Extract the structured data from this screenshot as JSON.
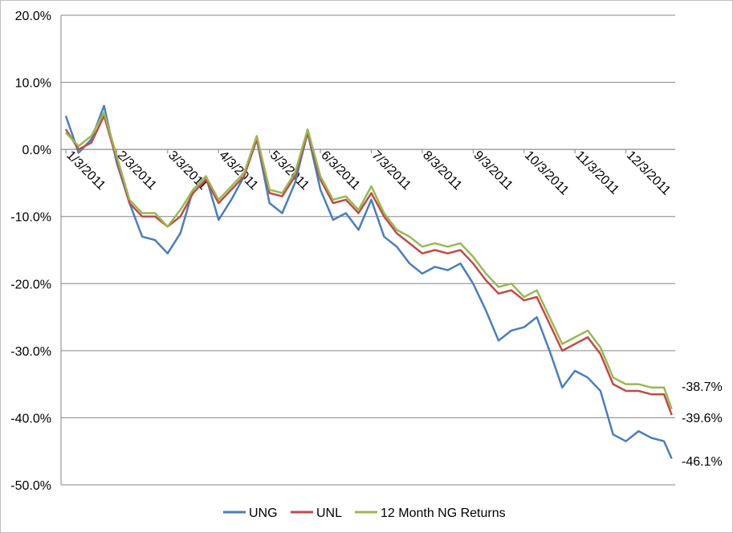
{
  "chart_data": {
    "type": "line",
    "title": "",
    "xlabel": "",
    "ylabel": "",
    "ylim": [
      -50,
      20
    ],
    "y_ticks": [
      "20.0%",
      "10.0%",
      "0.0%",
      "-10.0%",
      "-20.0%",
      "-30.0%",
      "-40.0%",
      "-50.0%"
    ],
    "x_tick_labels": [
      "1/3/2011",
      "2/3/2011",
      "3/3/2011",
      "4/3/2011",
      "5/3/2011",
      "6/3/2011",
      "7/3/2011",
      "8/3/2011",
      "9/3/2011",
      "10/3/2011",
      "11/3/2011",
      "12/3/2011"
    ],
    "grid": "horizontal",
    "legend_position": "bottom",
    "colors": {
      "UNG": "#4a7ebb",
      "UNL": "#be4b48",
      "12 Month NG Returns": "#98b954",
      "grid": "#868686"
    },
    "end_labels": [
      {
        "series": "12 Month NG Returns",
        "text": "-38.7%"
      },
      {
        "series": "UNL",
        "text": "-39.6%"
      },
      {
        "series": "UNG",
        "text": "-46.1%"
      }
    ],
    "x": [
      0,
      0.25,
      0.5,
      0.75,
      1.0,
      1.25,
      1.5,
      1.75,
      2.0,
      2.25,
      2.5,
      2.75,
      3.0,
      3.25,
      3.5,
      3.75,
      4.0,
      4.25,
      4.5,
      4.75,
      5.0,
      5.25,
      5.5,
      5.75,
      6.0,
      6.25,
      6.5,
      6.75,
      7.0,
      7.25,
      7.5,
      7.75,
      8.0,
      8.25,
      8.5,
      8.75,
      9.0,
      9.25,
      9.5,
      9.75,
      10.0,
      10.25,
      10.5,
      10.75,
      11.0,
      11.25,
      11.5,
      11.75,
      11.9
    ],
    "series": [
      {
        "name": "UNG",
        "values": [
          5.0,
          -0.5,
          1.5,
          6.5,
          -2.0,
          -8.0,
          -13.0,
          -13.5,
          -15.5,
          -12.5,
          -6.0,
          -4.0,
          -10.5,
          -7.5,
          -4.0,
          1.5,
          -8.0,
          -9.5,
          -5.0,
          2.5,
          -6.0,
          -10.5,
          -9.5,
          -12.0,
          -7.5,
          -13.0,
          -14.5,
          -17.0,
          -18.5,
          -17.5,
          -18.0,
          -17.0,
          -20.0,
          -24.0,
          -28.5,
          -27.0,
          -26.5,
          -25.0,
          -30.0,
          -35.5,
          -33.0,
          -34.0,
          -36.0,
          -42.5,
          -43.5,
          -42.0,
          -43.0,
          -43.5,
          -46.1
        ]
      },
      {
        "name": "UNL",
        "values": [
          3.0,
          0.0,
          1.0,
          5.0,
          -1.5,
          -8.0,
          -10.0,
          -10.0,
          -11.5,
          -10.0,
          -6.5,
          -4.5,
          -8.0,
          -6.0,
          -4.0,
          1.5,
          -6.5,
          -7.0,
          -4.0,
          2.5,
          -4.5,
          -8.0,
          -7.5,
          -9.5,
          -6.5,
          -10.0,
          -12.5,
          -14.0,
          -15.5,
          -15.0,
          -15.5,
          -15.0,
          -17.0,
          -19.5,
          -21.5,
          -21.0,
          -22.5,
          -22.0,
          -26.0,
          -30.0,
          -29.0,
          -28.0,
          -30.5,
          -35.0,
          -36.0,
          -36.0,
          -36.5,
          -36.5,
          -39.6
        ]
      },
      {
        "name": "12 Month NG Returns",
        "values": [
          2.5,
          0.5,
          2.0,
          5.5,
          -1.0,
          -7.5,
          -9.5,
          -9.5,
          -11.5,
          -9.0,
          -6.0,
          -4.0,
          -7.5,
          -5.5,
          -3.5,
          2.0,
          -6.0,
          -6.5,
          -3.5,
          3.0,
          -4.0,
          -7.5,
          -7.0,
          -9.0,
          -5.5,
          -9.5,
          -12.0,
          -13.0,
          -14.5,
          -14.0,
          -14.5,
          -14.0,
          -16.0,
          -18.5,
          -20.5,
          -20.0,
          -22.0,
          -21.0,
          -25.0,
          -29.0,
          -28.0,
          -27.0,
          -29.5,
          -34.0,
          -35.0,
          -35.0,
          -35.5,
          -35.5,
          -38.7
        ]
      }
    ]
  }
}
